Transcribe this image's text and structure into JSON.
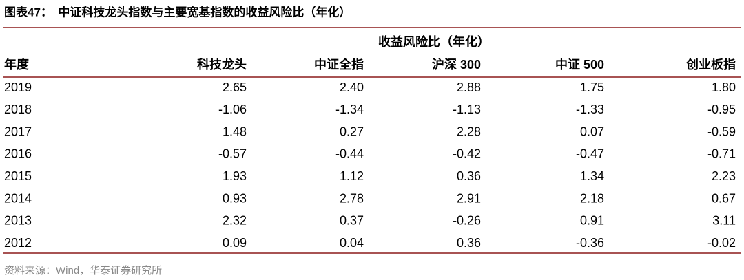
{
  "header": {
    "title": "图表47：　中证科技龙头指数与主要宽基指数的收益风险比（年化）"
  },
  "table": {
    "group_header": "收益风险比（年化）",
    "columns": [
      "年度",
      "科技龙头",
      "中证全指",
      "沪深 300",
      "中证 500",
      "创业板指"
    ],
    "rows": [
      [
        "2019",
        "2.65",
        "2.40",
        "2.88",
        "1.75",
        "1.80"
      ],
      [
        "2018",
        "-1.06",
        "-1.34",
        "-1.13",
        "-1.33",
        "-0.95"
      ],
      [
        "2017",
        "1.48",
        "0.27",
        "2.28",
        "0.07",
        "-0.59"
      ],
      [
        "2016",
        "-0.57",
        "-0.44",
        "-0.42",
        "-0.47",
        "-0.71"
      ],
      [
        "2015",
        "1.93",
        "1.12",
        "0.36",
        "1.34",
        "2.23"
      ],
      [
        "2014",
        "0.93",
        "2.78",
        "2.91",
        "2.18",
        "0.67"
      ],
      [
        "2013",
        "2.32",
        "0.37",
        "-0.26",
        "0.91",
        "3.11"
      ],
      [
        "2012",
        "0.09",
        "0.04",
        "0.36",
        "-0.36",
        "-0.02"
      ]
    ]
  },
  "footer": {
    "source": "资料来源：Wind，华泰证券研究所"
  }
}
